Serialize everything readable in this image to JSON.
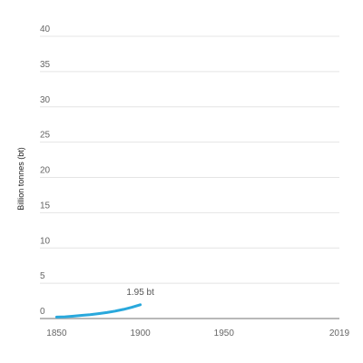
{
  "chart_data": {
    "type": "line",
    "ylabel": "Billion tonnes (bt)",
    "xlabel": "",
    "ylim": [
      0,
      40
    ],
    "yticks": [
      0,
      5,
      10,
      15,
      20,
      25,
      30,
      35,
      40
    ],
    "xlim": [
      1840,
      2019
    ],
    "xticks": [
      1850,
      1900,
      1950,
      2019
    ],
    "grid": true,
    "color": "#29a8dc",
    "series": [
      {
        "x": [
          1850,
          1855,
          1860,
          1865,
          1870,
          1875,
          1880,
          1885,
          1890,
          1895,
          1900
        ],
        "values": [
          0.2,
          0.25,
          0.33,
          0.45,
          0.55,
          0.7,
          0.85,
          1.05,
          1.3,
          1.6,
          1.95
        ]
      }
    ],
    "annotations": [
      {
        "text": "1.95 bt",
        "x": 1900,
        "y": 1.95
      }
    ]
  }
}
